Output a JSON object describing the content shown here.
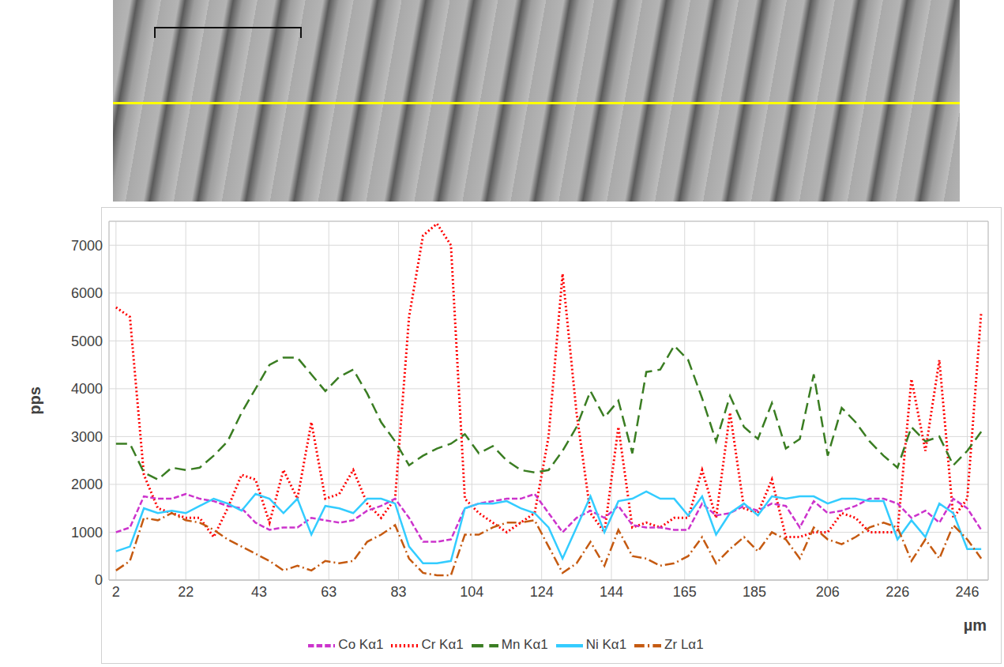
{
  "chart_data": {
    "type": "line",
    "x_label": "µm",
    "y_label": "pps",
    "xlim": [
      0,
      252
    ],
    "xticks": [
      2,
      22,
      43,
      63,
      83,
      104,
      124,
      144,
      165,
      185,
      206,
      226,
      246
    ],
    "ylim": [
      0,
      7500
    ],
    "yticks": [
      0,
      1000,
      2000,
      3000,
      4000,
      5000,
      6000,
      7000
    ],
    "grid": true,
    "legend": "bottom",
    "x": [
      2,
      6,
      10,
      14,
      18,
      22,
      26,
      30,
      34,
      38,
      42,
      46,
      50,
      54,
      58,
      62,
      66,
      70,
      74,
      78,
      82,
      86,
      90,
      94,
      98,
      102,
      106,
      110,
      114,
      118,
      122,
      126,
      130,
      134,
      138,
      142,
      146,
      150,
      154,
      158,
      162,
      166,
      170,
      174,
      178,
      182,
      186,
      190,
      194,
      198,
      202,
      206,
      210,
      214,
      218,
      222,
      226,
      230,
      234,
      238,
      242,
      246,
      250
    ],
    "series": [
      {
        "name": "Cr Kα1",
        "color": "#ff0000",
        "line_style": "dot",
        "values": [
          5700,
          5500,
          2200,
          1500,
          1400,
          1300,
          1300,
          900,
          1500,
          2200,
          2100,
          1200,
          2300,
          1700,
          3300,
          1700,
          1800,
          2300,
          1600,
          1300,
          1700,
          5500,
          7200,
          7450,
          7000,
          1700,
          1400,
          1200,
          1000,
          1200,
          1400,
          3000,
          6400,
          3500,
          1400,
          1000,
          3200,
          1100,
          1200,
          1100,
          1300,
          1300,
          2300,
          1300,
          3500,
          1500,
          1400,
          2100,
          900,
          900,
          1000,
          1000,
          1400,
          1300,
          1000,
          1000,
          1000,
          4200,
          2700,
          4600,
          1300,
          1700,
          5600
        ]
      },
      {
        "name": "Mn Kα1",
        "color": "#3a7d22",
        "line_style": "longdash",
        "values": [
          2850,
          2850,
          2250,
          2100,
          2350,
          2300,
          2350,
          2600,
          2900,
          3500,
          4000,
          4500,
          4650,
          4650,
          4300,
          3950,
          4250,
          4400,
          3900,
          3300,
          2900,
          2400,
          2600,
          2750,
          2850,
          3050,
          2650,
          2800,
          2500,
          2300,
          2250,
          2300,
          2700,
          3200,
          3950,
          3400,
          3750,
          2650,
          4350,
          4400,
          4900,
          4600,
          3800,
          2900,
          3850,
          3200,
          2950,
          3700,
          2750,
          2950,
          4300,
          2600,
          3600,
          3300,
          2900,
          2600,
          2350,
          3200,
          2900,
          3000,
          2400,
          2700,
          3100
        ]
      },
      {
        "name": "Co Kα1",
        "color": "#cc33cc",
        "line_style": "dash",
        "values": [
          1000,
          1100,
          1750,
          1700,
          1700,
          1800,
          1700,
          1650,
          1550,
          1500,
          1200,
          1050,
          1100,
          1100,
          1300,
          1250,
          1200,
          1250,
          1450,
          1550,
          1700,
          1300,
          800,
          800,
          850,
          1500,
          1600,
          1650,
          1700,
          1700,
          1800,
          1400,
          1000,
          1300,
          1450,
          1300,
          1550,
          1150,
          1100,
          1100,
          1050,
          1050,
          1600,
          1350,
          1400,
          1550,
          1450,
          1600,
          1550,
          1100,
          1650,
          1400,
          1450,
          1550,
          1700,
          1700,
          1600,
          1300,
          1450,
          1200,
          1700,
          1500,
          1050
        ]
      },
      {
        "name": "Ni Kα1",
        "color": "#33ccff",
        "line_style": "solid",
        "values": [
          600,
          700,
          1500,
          1400,
          1450,
          1400,
          1550,
          1700,
          1600,
          1450,
          1800,
          1700,
          1400,
          1700,
          950,
          1550,
          1500,
          1400,
          1700,
          1700,
          1600,
          700,
          350,
          350,
          400,
          1500,
          1600,
          1600,
          1650,
          1500,
          1400,
          1100,
          450,
          1100,
          1750,
          1000,
          1650,
          1700,
          1850,
          1700,
          1700,
          1350,
          1750,
          950,
          1400,
          1600,
          1350,
          1750,
          1700,
          1750,
          1750,
          1600,
          1700,
          1700,
          1650,
          1650,
          850,
          1250,
          900,
          1600,
          1400,
          650,
          650
        ]
      },
      {
        "name": "Zr Lα1",
        "color": "#c55a11",
        "line_style": "dashdot",
        "values": [
          200,
          400,
          1300,
          1250,
          1400,
          1250,
          1200,
          1050,
          850,
          700,
          550,
          400,
          200,
          300,
          200,
          400,
          350,
          400,
          800,
          950,
          1150,
          450,
          150,
          100,
          100,
          950,
          950,
          1100,
          1200,
          1200,
          1250,
          700,
          150,
          350,
          800,
          300,
          1050,
          500,
          450,
          300,
          350,
          500,
          900,
          350,
          650,
          900,
          600,
          1000,
          850,
          450,
          1100,
          850,
          750,
          900,
          1100,
          1200,
          1100,
          400,
          850,
          450,
          1150,
          850,
          450
        ]
      }
    ]
  }
}
